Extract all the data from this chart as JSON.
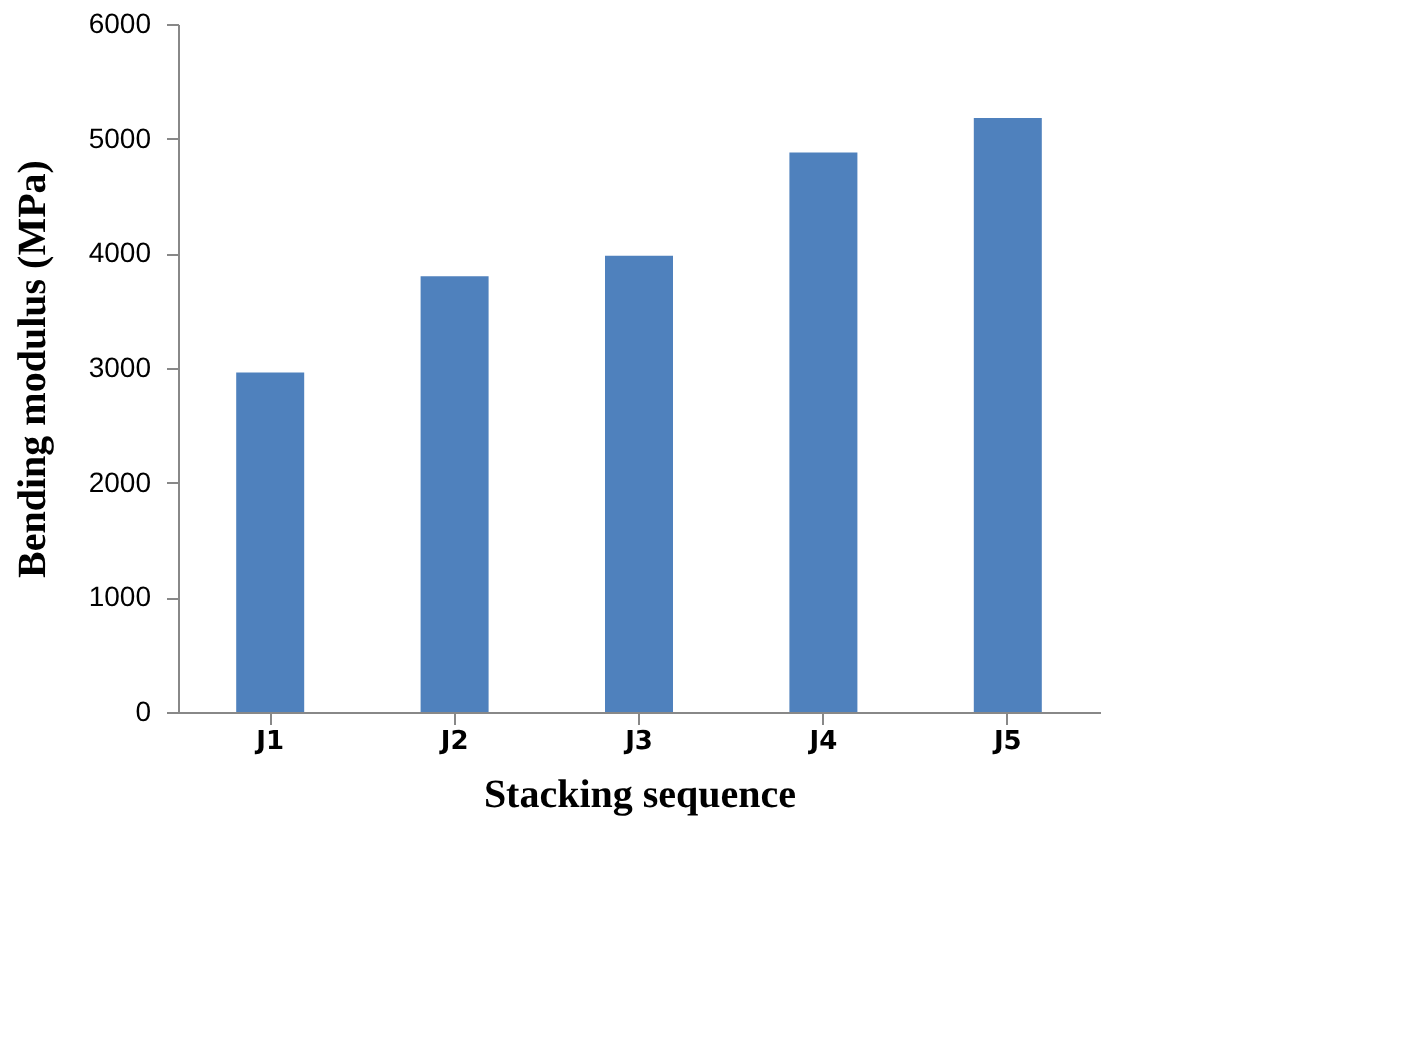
{
  "chart_data": {
    "type": "bar",
    "xlabel": "Stacking sequence",
    "ylabel": "Bending modulus (MPa)",
    "categories": [
      "J1",
      "J2",
      "J3",
      "J4",
      "J5"
    ],
    "values": [
      2960,
      3800,
      3980,
      4880,
      5180
    ],
    "color": "#4f81bd",
    "ylim": [
      0,
      6000
    ],
    "yticks": [
      0,
      1000,
      2000,
      3000,
      4000,
      5000,
      6000
    ],
    "grid": false
  }
}
